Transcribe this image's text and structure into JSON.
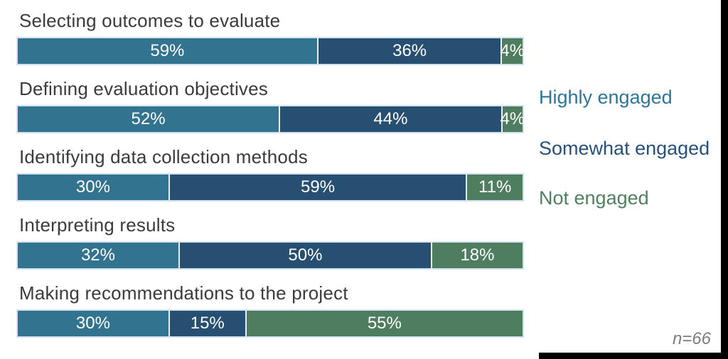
{
  "chart_data": {
    "type": "bar",
    "orientation": "horizontal-stacked",
    "title": "",
    "categories": [
      "Selecting outcomes to evaluate",
      "Defining evaluation objectives",
      "Identifying data collection methods",
      "Interpreting results",
      "Making recommendations to the project"
    ],
    "series": [
      {
        "name": "Highly engaged",
        "color": "#32738f",
        "values": [
          59,
          52,
          30,
          32,
          30
        ]
      },
      {
        "name": "Somewhat engaged",
        "color": "#264f72",
        "values": [
          36,
          44,
          59,
          50,
          15
        ]
      },
      {
        "name": "Not engaged",
        "color": "#4f7d5f",
        "values": [
          4,
          4,
          11,
          18,
          55
        ]
      }
    ],
    "value_format": "percent",
    "data_labels": "inside-center, white",
    "xlim": [
      0,
      100
    ],
    "grid": false,
    "legend_position": "right",
    "annotation": "n=66"
  },
  "rows": [
    {
      "label": "Selecting outcomes to evaluate",
      "segments": [
        {
          "text": "59%",
          "value": 59
        },
        {
          "text": "36%",
          "value": 36
        },
        {
          "text": "4%",
          "value": 4
        }
      ]
    },
    {
      "label": "Defining evaluation objectives",
      "segments": [
        {
          "text": "52%",
          "value": 52
        },
        {
          "text": "44%",
          "value": 44
        },
        {
          "text": "4%",
          "value": 4
        }
      ]
    },
    {
      "label": "Identifying data collection methods",
      "segments": [
        {
          "text": "30%",
          "value": 30
        },
        {
          "text": "59%",
          "value": 59
        },
        {
          "text": "11%",
          "value": 11
        }
      ]
    },
    {
      "label": "Interpreting results",
      "segments": [
        {
          "text": "32%",
          "value": 32
        },
        {
          "text": "50%",
          "value": 50
        },
        {
          "text": "18%",
          "value": 18
        }
      ]
    },
    {
      "label": "Making recommendations to the project",
      "segments": [
        {
          "text": "30%",
          "value": 30
        },
        {
          "text": "15%",
          "value": 15
        },
        {
          "text": "55%",
          "value": 55
        }
      ]
    }
  ],
  "legend": {
    "items": [
      {
        "label": "Highly engaged",
        "color": "#2e7599"
      },
      {
        "label": "Somewhat engaged",
        "color": "#25517c"
      },
      {
        "label": "Not engaged",
        "color": "#4f8160"
      }
    ]
  },
  "footnote": "n=66",
  "colors": {
    "highly_engaged": "#32738f",
    "somewhat_engaged": "#264f72",
    "not_engaged": "#4f7d5f",
    "category_text": "#3b3b3b",
    "bar_label_text": "#ffffff",
    "footnote_text": "#7c7c7c",
    "frame": "#000000",
    "bar_border": "#d3e1ef"
  }
}
